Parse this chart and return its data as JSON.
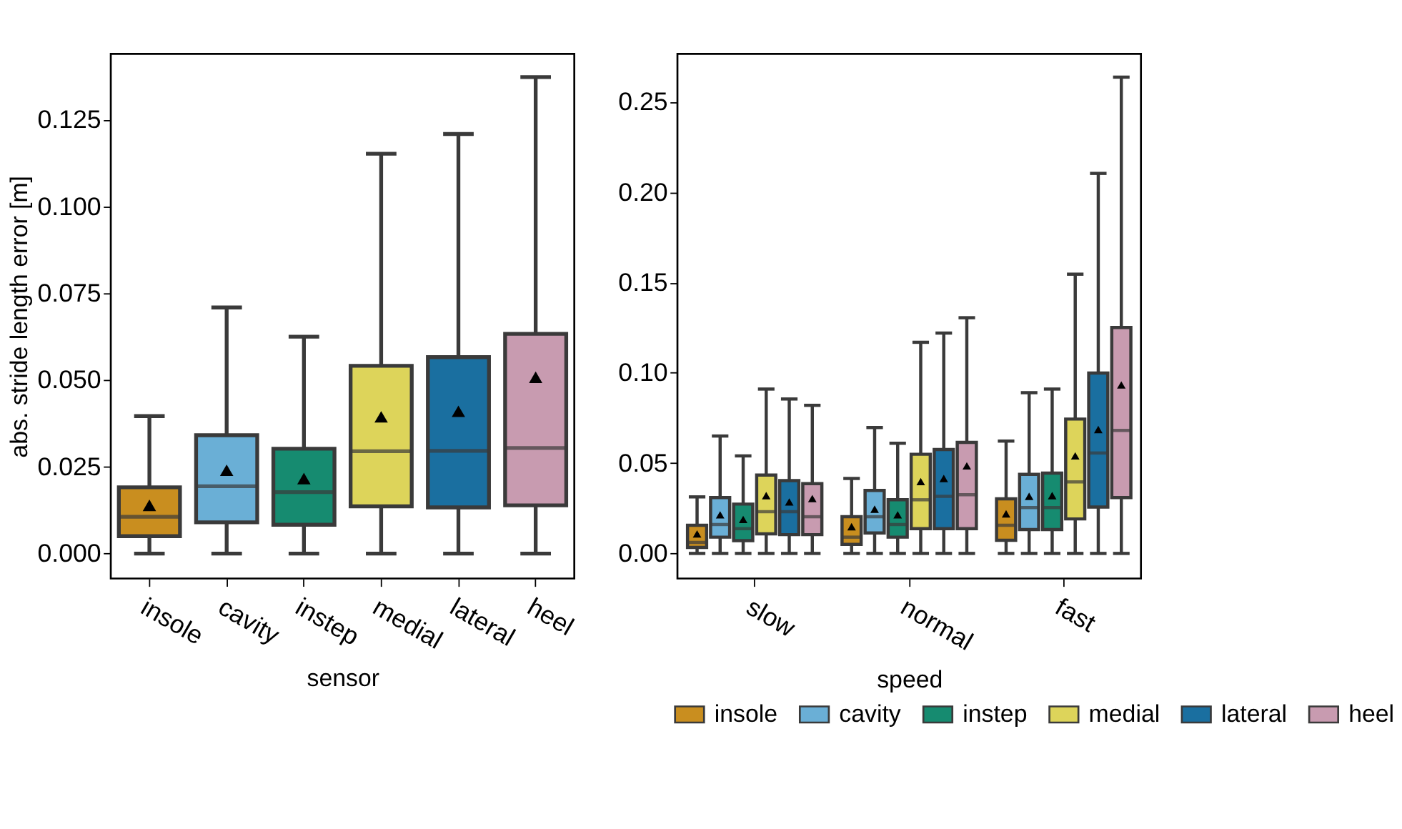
{
  "chart_data": [
    {
      "type": "box",
      "xlabel": "sensor",
      "ylabel": "abs. stride length error [m]",
      "categories": [
        "insole",
        "cavity",
        "instep",
        "medial",
        "lateral",
        "heel"
      ],
      "colors": [
        "#c98e1f",
        "#6aafd6",
        "#168b70",
        "#ddd45a",
        "#1a6fa0",
        "#c89bb0"
      ],
      "boxes": [
        {
          "low": 0,
          "q1": 0.005,
          "median": 0.0106,
          "q3": 0.0191,
          "high": 0.0396,
          "mean": 0.0139
        },
        {
          "low": 0,
          "q1": 0.009,
          "median": 0.0194,
          "q3": 0.0341,
          "high": 0.0709,
          "mean": 0.024
        },
        {
          "low": 0,
          "q1": 0.0083,
          "median": 0.0177,
          "q3": 0.0302,
          "high": 0.0625,
          "mean": 0.0216
        },
        {
          "low": 0,
          "q1": 0.0136,
          "median": 0.0295,
          "q3": 0.0541,
          "high": 0.1152,
          "mean": 0.0394
        },
        {
          "low": 0,
          "q1": 0.0133,
          "median": 0.0296,
          "q3": 0.0566,
          "high": 0.1209,
          "mean": 0.041
        },
        {
          "low": 0,
          "q1": 0.0139,
          "median": 0.0304,
          "q3": 0.0633,
          "high": 0.1373,
          "mean": 0.0508
        }
      ],
      "ylim": [
        -0.0072,
        0.144
      ],
      "yticks": [
        {
          "value": 0,
          "label": "0.000"
        },
        {
          "value": 0.025,
          "label": "0.025"
        },
        {
          "value": 0.05,
          "label": "0.050"
        },
        {
          "value": 0.075,
          "label": "0.075"
        },
        {
          "value": 0.1,
          "label": "0.100"
        },
        {
          "value": 0.125,
          "label": "0.125"
        }
      ],
      "grid": false,
      "legend": false,
      "marker": "triangle"
    },
    {
      "type": "box",
      "xlabel": "speed",
      "categories": [
        "slow",
        "normal",
        "fast"
      ],
      "series": [
        {
          "name": "insole",
          "color": "#c98e1f",
          "boxes": [
            {
              "low": 0,
              "q1": 0.0033,
              "median": 0.0061,
              "q3": 0.0156,
              "high": 0.0313,
              "mean": 0.0108
            },
            {
              "low": 0,
              "q1": 0.005,
              "median": 0.009,
              "q3": 0.0203,
              "high": 0.0415,
              "mean": 0.0148
            },
            {
              "low": 0,
              "q1": 0.0073,
              "median": 0.0156,
              "q3": 0.0302,
              "high": 0.0622,
              "mean": 0.0219
            }
          ]
        },
        {
          "name": "cavity",
          "color": "#6aafd6",
          "boxes": [
            {
              "low": 0,
              "q1": 0.009,
              "median": 0.016,
              "q3": 0.0309,
              "high": 0.065,
              "mean": 0.0214
            },
            {
              "low": 0,
              "q1": 0.0113,
              "median": 0.0203,
              "q3": 0.0349,
              "high": 0.0697,
              "mean": 0.0245
            },
            {
              "low": 0,
              "q1": 0.0132,
              "median": 0.0254,
              "q3": 0.0438,
              "high": 0.089,
              "mean": 0.0316
            }
          ]
        },
        {
          "name": "instep",
          "color": "#168b70",
          "boxes": [
            {
              "low": 0,
              "q1": 0.0071,
              "median": 0.0137,
              "q3": 0.0273,
              "high": 0.054,
              "mean": 0.0188
            },
            {
              "low": 0,
              "q1": 0.009,
              "median": 0.016,
              "q3": 0.0297,
              "high": 0.061,
              "mean": 0.0214
            },
            {
              "low": 0,
              "q1": 0.0132,
              "median": 0.0254,
              "q3": 0.0445,
              "high": 0.091,
              "mean": 0.032
            }
          ]
        },
        {
          "name": "medial",
          "color": "#ddd45a",
          "boxes": [
            {
              "low": 0,
              "q1": 0.0108,
              "median": 0.0231,
              "q3": 0.0434,
              "high": 0.091,
              "mean": 0.032
            },
            {
              "low": 0,
              "q1": 0.0137,
              "median": 0.0297,
              "q3": 0.0549,
              "high": 0.1169,
              "mean": 0.0398
            },
            {
              "low": 0,
              "q1": 0.0191,
              "median": 0.0396,
              "q3": 0.0744,
              "high": 0.1546,
              "mean": 0.054
            }
          ]
        },
        {
          "name": "lateral",
          "color": "#1a6fa0",
          "boxes": [
            {
              "low": 0,
              "q1": 0.0104,
              "median": 0.0231,
              "q3": 0.0403,
              "high": 0.0855,
              "mean": 0.0285
            },
            {
              "low": 0,
              "q1": 0.0137,
              "median": 0.0316,
              "q3": 0.0575,
              "high": 0.122,
              "mean": 0.0415
            },
            {
              "low": 0,
              "q1": 0.0257,
              "median": 0.0556,
              "q3": 0.0999,
              "high": 0.2104,
              "mean": 0.0686
            }
          ]
        },
        {
          "name": "heel",
          "color": "#c89bb0",
          "boxes": [
            {
              "low": 0,
              "q1": 0.0104,
              "median": 0.0203,
              "q3": 0.0386,
              "high": 0.082,
              "mean": 0.0304
            },
            {
              "low": 0,
              "q1": 0.0137,
              "median": 0.0325,
              "q3": 0.0615,
              "high": 0.1305,
              "mean": 0.0485
            },
            {
              "low": 0,
              "q1": 0.0309,
              "median": 0.0681,
              "q3": 0.1251,
              "high": 0.2637,
              "mean": 0.0933
            }
          ]
        }
      ],
      "ylim": [
        -0.0139,
        0.2766
      ],
      "yticks": [
        {
          "value": 0,
          "label": "0.00"
        },
        {
          "value": 0.05,
          "label": "0.05"
        },
        {
          "value": 0.1,
          "label": "0.10"
        },
        {
          "value": 0.15,
          "label": "0.15"
        },
        {
          "value": 0.2,
          "label": "0.20"
        },
        {
          "value": 0.25,
          "label": "0.25"
        }
      ],
      "grid": false,
      "legend": "bottom",
      "marker": "triangle"
    }
  ]
}
